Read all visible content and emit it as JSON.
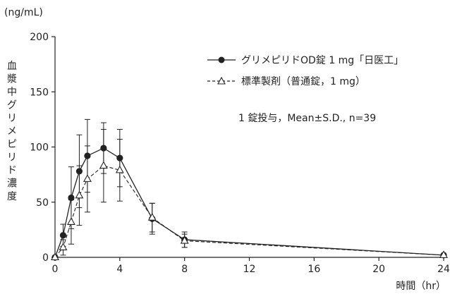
{
  "chart_data": {
    "type": "line",
    "y_unit": "(ng/mL)",
    "ylabel": "血漿中グリメピリド濃度",
    "xlabel": "時間（hr）",
    "xlim": [
      0,
      24
    ],
    "ylim": [
      0,
      200
    ],
    "x_ticks": [
      0,
      4,
      8,
      12,
      16,
      20,
      24
    ],
    "y_ticks": [
      0,
      50,
      100,
      150,
      200
    ],
    "annotation": "1 錠投与，Mean±S.D., n=39",
    "series": [
      {
        "name": "グリメピリドOD錠 1 mg「日医工」",
        "marker": "filled-circle",
        "line": "solid",
        "color": "#222222",
        "x": [
          0,
          0.5,
          1,
          1.5,
          2,
          3,
          4,
          6,
          8,
          24
        ],
        "y": [
          0,
          20,
          54,
          78,
          92,
          99,
          90,
          35,
          16,
          2
        ],
        "sd": [
          0,
          10,
          28,
          33,
          33,
          23,
          26,
          14,
          7,
          1
        ]
      },
      {
        "name": "標準製剤（普通錠，1 mg）",
        "marker": "open-triangle",
        "line": "dashed",
        "color": "#222222",
        "x": [
          0,
          0.5,
          1,
          1.5,
          2,
          3,
          4,
          6,
          8,
          24
        ],
        "y": [
          0,
          9,
          32,
          56,
          71,
          83,
          79,
          36,
          15,
          2
        ],
        "sd": [
          0,
          7,
          20,
          27,
          30,
          33,
          28,
          13,
          6,
          1
        ]
      }
    ]
  }
}
